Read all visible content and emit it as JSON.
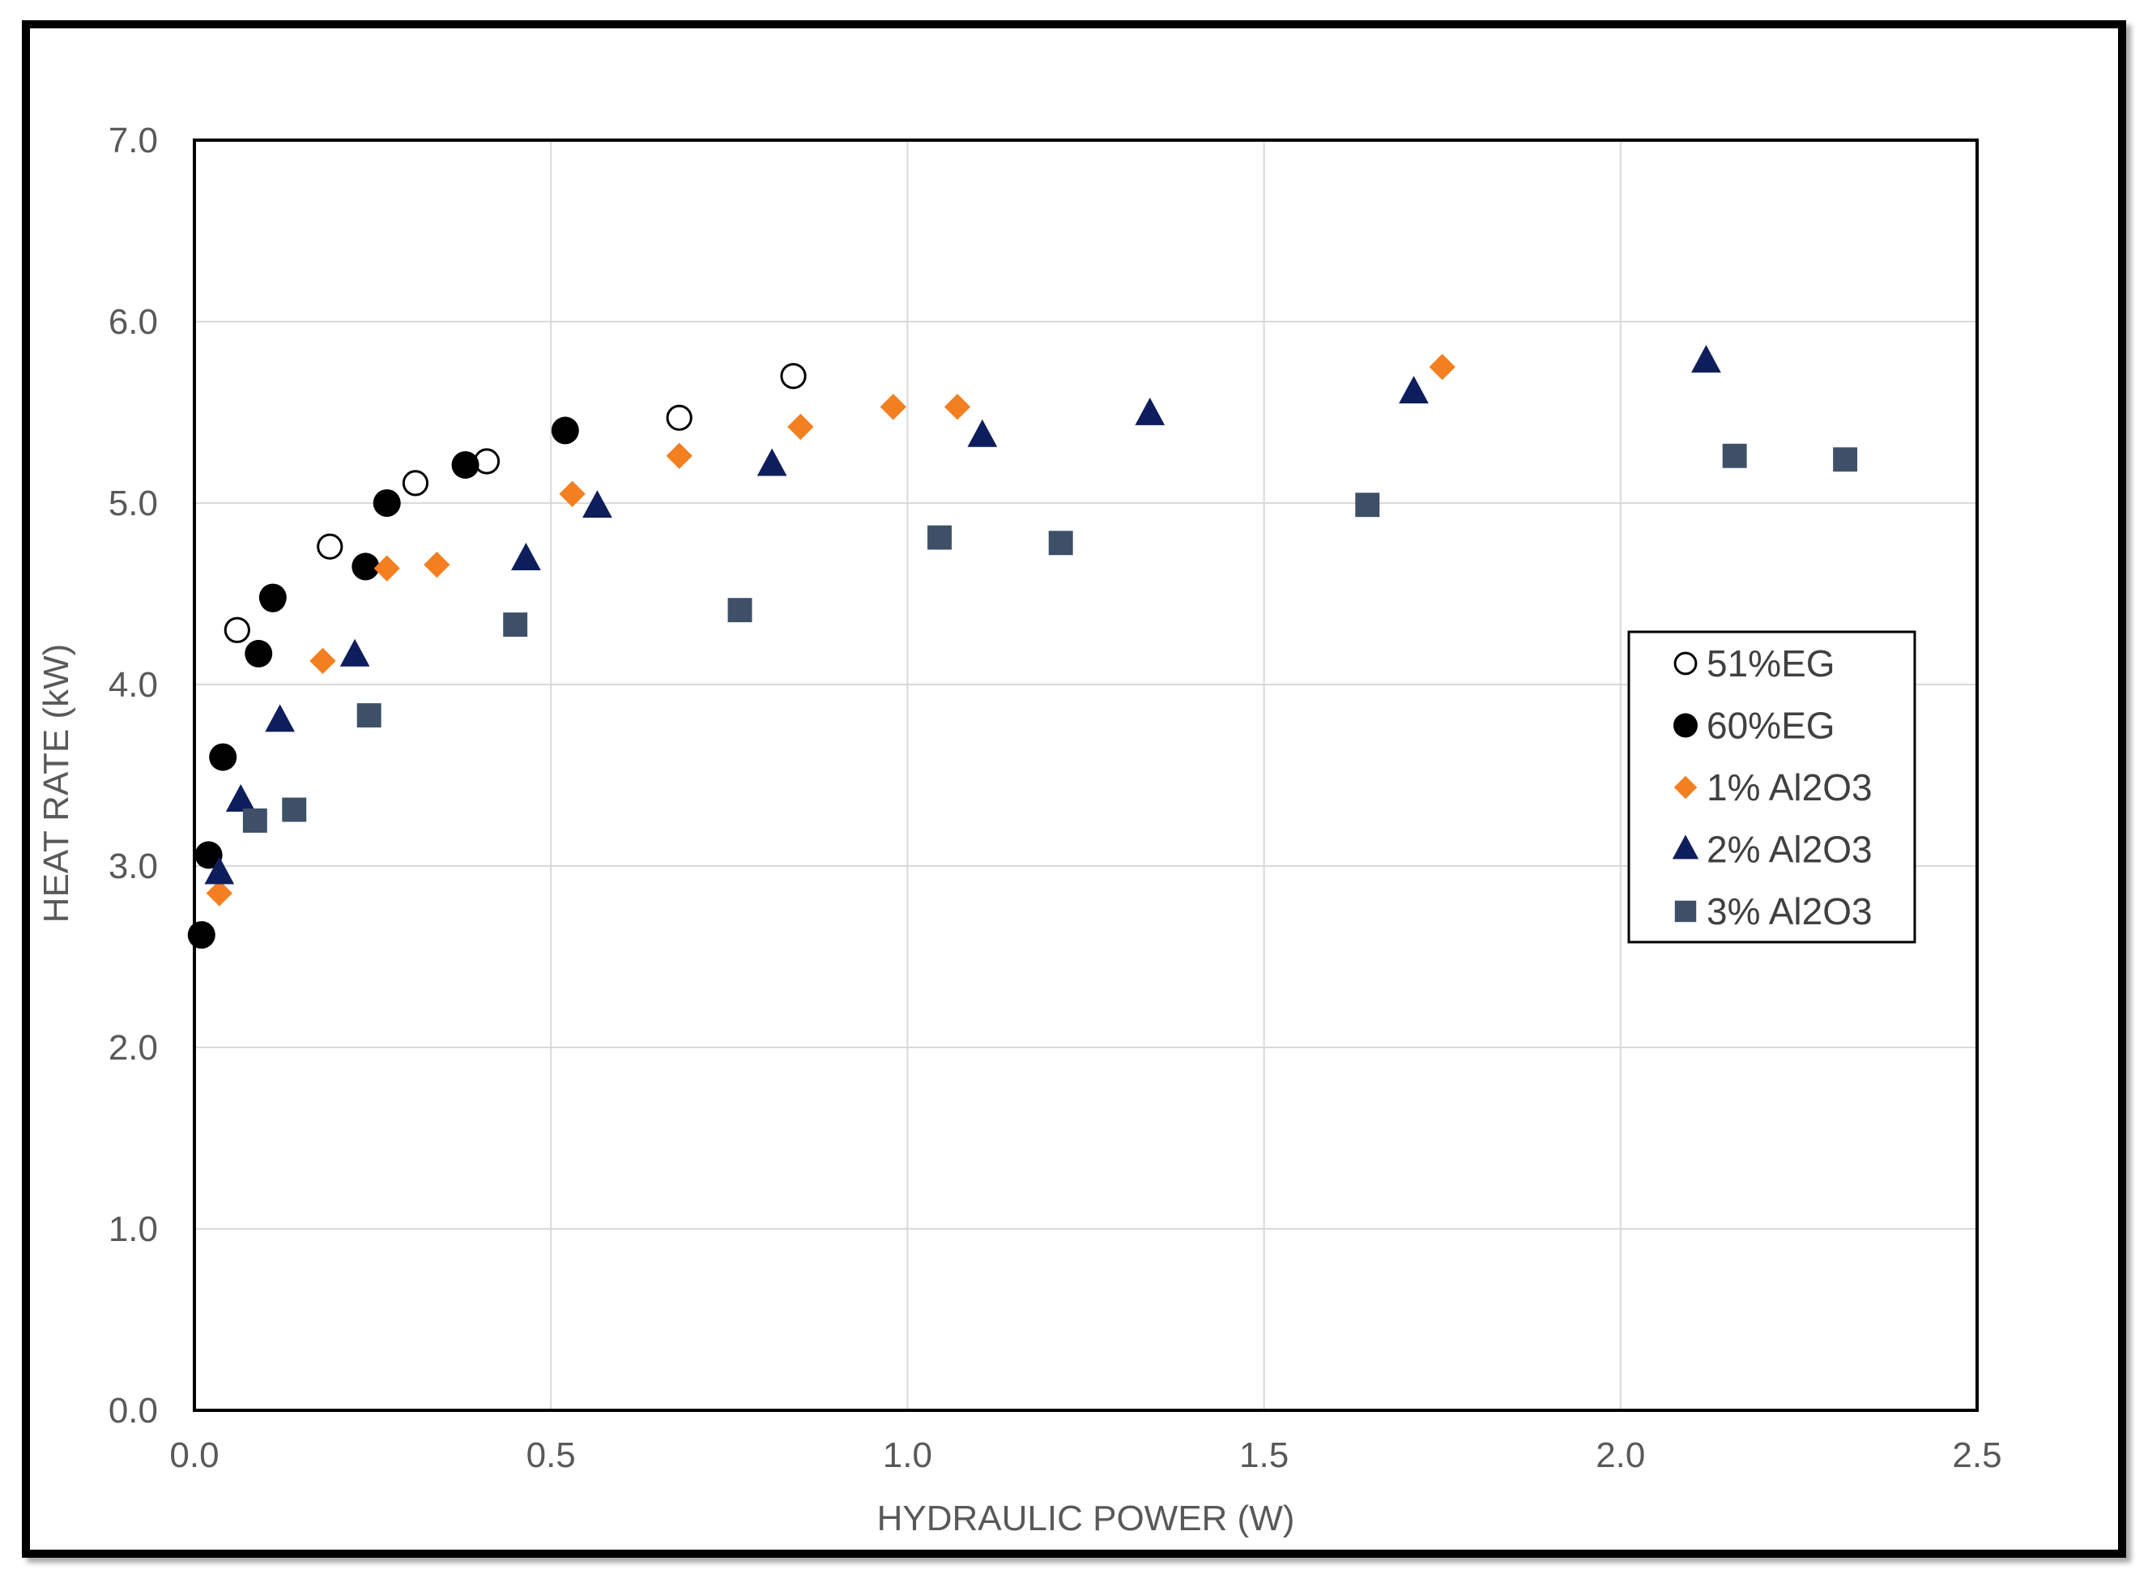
{
  "chart_data": {
    "type": "scatter",
    "title": "",
    "xlabel": "HYDRAULIC POWER (W)",
    "ylabel": "HEAT RATE (kW)",
    "xlim": [
      0.0,
      2.5
    ],
    "ylim": [
      0.0,
      7.0
    ],
    "x_ticks": [
      "0.0",
      "0.5",
      "1.0",
      "1.5",
      "2.0",
      "2.5"
    ],
    "y_ticks": [
      "0.0",
      "1.0",
      "2.0",
      "3.0",
      "4.0",
      "5.0",
      "6.0",
      "7.0"
    ],
    "x_tick_values": [
      0.0,
      0.5,
      1.0,
      1.5,
      2.0,
      2.5
    ],
    "y_tick_values": [
      0.0,
      1.0,
      2.0,
      3.0,
      4.0,
      5.0,
      6.0,
      7.0
    ],
    "grid": true,
    "legend_position": "right",
    "series": [
      {
        "name": "51%EG",
        "marker": "circle-open",
        "color": "#000000",
        "points": [
          [
            0.06,
            4.3
          ],
          [
            0.11,
            4.47
          ],
          [
            0.19,
            4.76
          ],
          [
            0.31,
            5.11
          ],
          [
            0.41,
            5.23
          ],
          [
            0.68,
            5.47
          ],
          [
            0.84,
            5.7
          ]
        ]
      },
      {
        "name": "60%EG",
        "marker": "circle",
        "color": "#000000",
        "points": [
          [
            0.01,
            2.62
          ],
          [
            0.02,
            3.06
          ],
          [
            0.04,
            3.6
          ],
          [
            0.09,
            4.17
          ],
          [
            0.11,
            4.48
          ],
          [
            0.24,
            4.65
          ],
          [
            0.27,
            5.0
          ],
          [
            0.38,
            5.21
          ],
          [
            0.52,
            5.4
          ]
        ]
      },
      {
        "name": "1% Al2O3",
        "marker": "diamond",
        "color": "#F47F20",
        "points": [
          [
            0.035,
            2.85
          ],
          [
            0.18,
            4.13
          ],
          [
            0.27,
            4.64
          ],
          [
            0.34,
            4.66
          ],
          [
            0.53,
            5.05
          ],
          [
            0.68,
            5.26
          ],
          [
            0.85,
            5.42
          ],
          [
            0.98,
            5.53
          ],
          [
            1.07,
            5.53
          ],
          [
            1.75,
            5.75
          ]
        ]
      },
      {
        "name": "2% Al2O3",
        "marker": "triangle",
        "color": "#0E1E5C",
        "points": [
          [
            0.035,
            2.96
          ],
          [
            0.065,
            3.36
          ],
          [
            0.12,
            3.8
          ],
          [
            0.225,
            4.16
          ],
          [
            0.465,
            4.69
          ],
          [
            0.565,
            4.98
          ],
          [
            0.81,
            5.21
          ],
          [
            1.105,
            5.37
          ],
          [
            1.34,
            5.49
          ],
          [
            1.71,
            5.61
          ],
          [
            2.12,
            5.78
          ]
        ]
      },
      {
        "name": "3% Al2O3",
        "marker": "square",
        "color": "#3D5068",
        "points": [
          [
            0.085,
            3.25
          ],
          [
            0.14,
            3.31
          ],
          [
            0.245,
            3.83
          ],
          [
            0.45,
            4.33
          ],
          [
            0.765,
            4.41
          ],
          [
            1.045,
            4.81
          ],
          [
            1.215,
            4.78
          ],
          [
            1.645,
            4.99
          ],
          [
            2.16,
            5.26
          ],
          [
            2.315,
            5.24
          ]
        ]
      }
    ]
  }
}
